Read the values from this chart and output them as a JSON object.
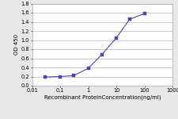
{
  "x_data": [
    0.03,
    0.1,
    0.3,
    1.0,
    3.0,
    10.0,
    30.0,
    100.0
  ],
  "y_data": [
    0.19,
    0.2,
    0.22,
    0.38,
    0.68,
    1.05,
    1.46,
    1.58
  ],
  "line_color": "#4444bb",
  "marker_color": "#4444bb",
  "marker": "s",
  "marker_size": 2.5,
  "line_width": 0.8,
  "xlabel": "Recombinant ProteinConcentration(ng/ml)",
  "ylabel": "OD 450",
  "xlim_log": [
    0.01,
    1000
  ],
  "ylim": [
    0,
    1.8
  ],
  "yticks": [
    0,
    0.2,
    0.4,
    0.6,
    0.8,
    1.0,
    1.2,
    1.4,
    1.6,
    1.8
  ],
  "xtick_labels": [
    "0.01",
    "0.1",
    "1",
    "10",
    "100",
    "1000"
  ],
  "xtick_values": [
    0.01,
    0.1,
    1,
    10,
    100,
    1000
  ],
  "xlabel_fontsize": 5.0,
  "ylabel_fontsize": 5.0,
  "tick_fontsize": 4.8,
  "background_color": "#e8e8e8",
  "plot_bg_color": "#ffffff",
  "grid_color": "#bbbbbb",
  "spine_color": "#aaaaaa"
}
